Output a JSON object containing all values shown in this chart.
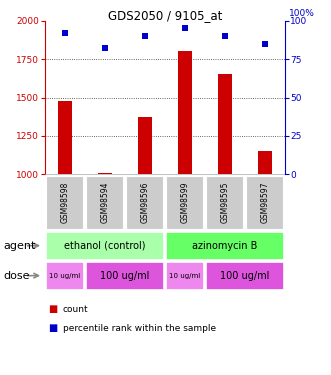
{
  "title": "GDS2050 / 9105_at",
  "samples": [
    "GSM98598",
    "GSM98594",
    "GSM98596",
    "GSM98599",
    "GSM98595",
    "GSM98597"
  ],
  "count_values": [
    1480,
    1010,
    1370,
    1800,
    1650,
    1150
  ],
  "percentile_values": [
    92,
    82,
    90,
    95,
    90,
    85
  ],
  "ylim_left": [
    1000,
    2000
  ],
  "ylim_right": [
    0,
    100
  ],
  "yticks_left": [
    1000,
    1250,
    1500,
    1750,
    2000
  ],
  "yticks_right": [
    0,
    25,
    50,
    75,
    100
  ],
  "bar_color": "#cc0000",
  "dot_color": "#0000cc",
  "agent_groups": [
    {
      "label": "ethanol (control)",
      "start": 0,
      "end": 3,
      "color": "#aaffaa"
    },
    {
      "label": "azinomycin B",
      "start": 3,
      "end": 6,
      "color": "#66ff66"
    }
  ],
  "dose_groups": [
    {
      "label": "10 ug/ml",
      "start": 0,
      "end": 1,
      "color": "#ee88ee",
      "fontsize": 5
    },
    {
      "label": "100 ug/ml",
      "start": 1,
      "end": 3,
      "color": "#dd55dd",
      "fontsize": 7
    },
    {
      "label": "10 ug/ml",
      "start": 3,
      "end": 4,
      "color": "#ee88ee",
      "fontsize": 5
    },
    {
      "label": "100 ug/ml",
      "start": 4,
      "end": 6,
      "color": "#dd55dd",
      "fontsize": 7
    }
  ],
  "sample_box_color": "#cccccc",
  "left_axis_color": "#cc0000",
  "right_axis_color": "#0000cc",
  "background_color": "#ffffff",
  "plot_bg_color": "#ffffff",
  "grid_color": "#000000",
  "bar_width": 0.35
}
